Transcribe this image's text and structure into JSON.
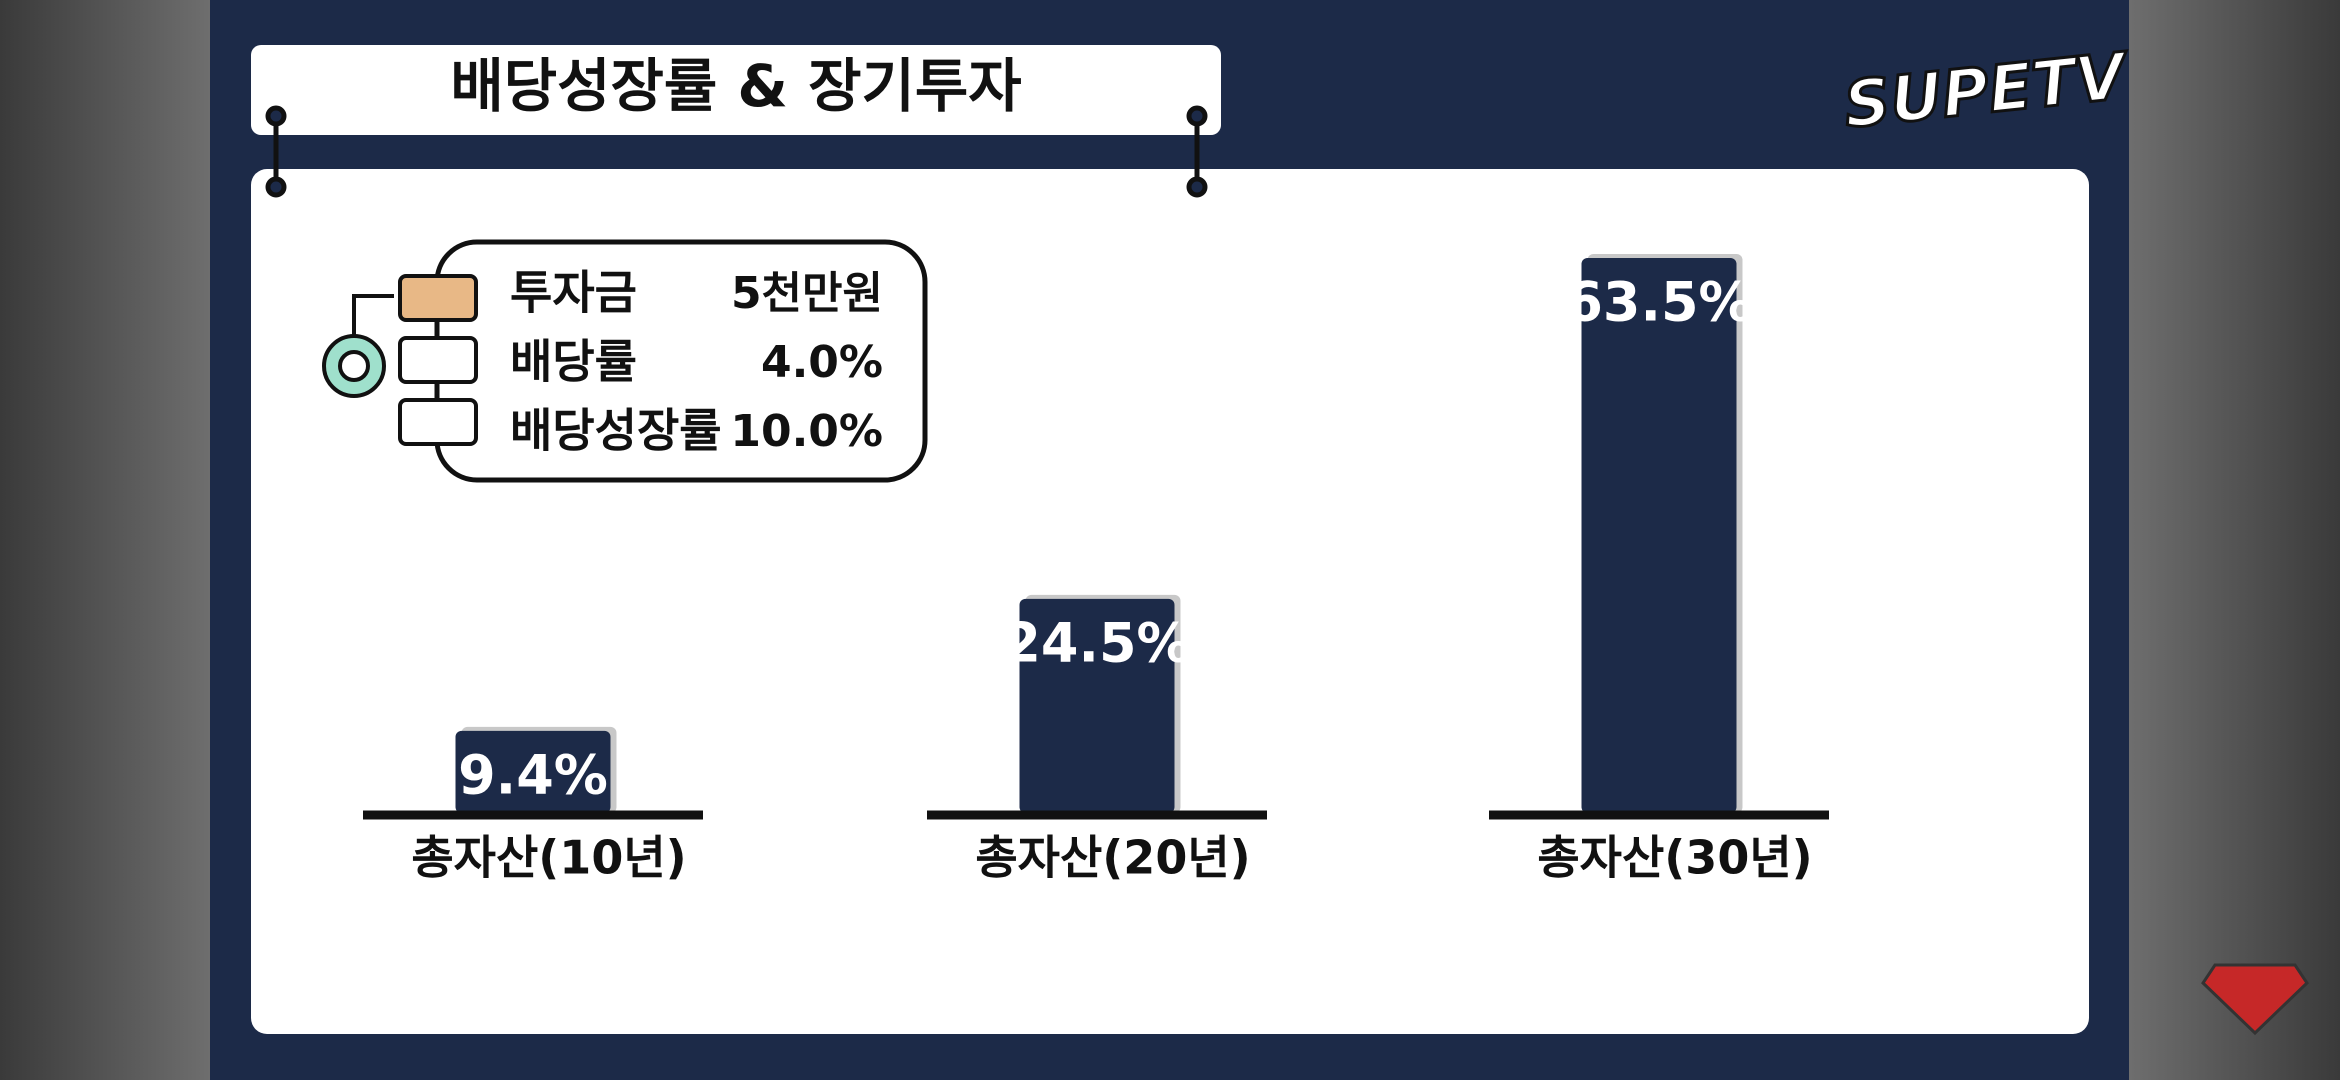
{
  "chart_data": {
    "type": "bar",
    "title": "배당성장률 & 장기투자",
    "logo": "SUPETV",
    "parameters": [
      {
        "label": "투자금",
        "value": "5천만원"
      },
      {
        "label": "배당률",
        "value": "4.0%"
      },
      {
        "label": "배당성장률",
        "value": "10.0%"
      }
    ],
    "categories": [
      "총자산(10년)",
      "총자산(20년)",
      "총자산(30년)"
    ],
    "values": [
      9.4,
      24.5,
      63.5
    ],
    "value_labels": [
      "9.4%",
      "24.5%",
      "63.5%"
    ],
    "color": "#1c2a48"
  }
}
